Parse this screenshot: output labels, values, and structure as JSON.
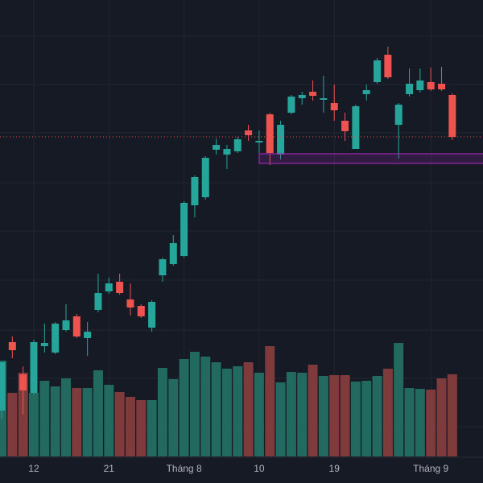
{
  "chart_data": {
    "type": "candlestick",
    "categories": [
      null,
      null,
      null,
      "12",
      null,
      null,
      null,
      null,
      null,
      null,
      "21",
      null,
      null,
      null,
      null,
      null,
      null,
      "Tháng 8",
      null,
      null,
      null,
      null,
      null,
      null,
      "10",
      null,
      null,
      null,
      null,
      null,
      null,
      "19",
      null,
      null,
      null,
      null,
      null,
      null,
      null,
      null,
      "Tháng 9",
      null,
      null
    ],
    "open": [
      90,
      175,
      135,
      112,
      170,
      162,
      190,
      207,
      180,
      215,
      238,
      250,
      228,
      220,
      193,
      258,
      272,
      282,
      345,
      355,
      414,
      408,
      412,
      438,
      423,
      458,
      408,
      460,
      478,
      486,
      476,
      472,
      450,
      415,
      483,
      498,
      532,
      445,
      483,
      488,
      498,
      496,
      482
    ],
    "high": [
      150,
      182,
      145,
      178,
      198,
      200,
      222,
      210,
      200,
      260,
      255,
      260,
      248,
      222,
      227,
      280,
      308,
      350,
      382,
      406,
      428,
      420,
      430,
      445,
      438,
      460,
      450,
      482,
      486,
      500,
      506,
      495,
      460,
      470,
      495,
      528,
      542,
      472,
      515,
      515,
      516,
      517,
      484
    ],
    "low": [
      80,
      155,
      85,
      110,
      162,
      160,
      188,
      180,
      158,
      212,
      235,
      234,
      208,
      205,
      188,
      250,
      270,
      280,
      330,
      352,
      408,
      390,
      410,
      425,
      410,
      395,
      402,
      458,
      470,
      475,
      460,
      450,
      425,
      415,
      475,
      496,
      502,
      403,
      480,
      485,
      487,
      487,
      426
    ],
    "close": [
      150,
      165,
      115,
      175,
      174,
      198,
      202,
      182,
      188,
      236,
      248,
      236,
      218,
      207,
      225,
      278,
      298,
      348,
      380,
      404,
      420,
      415,
      427,
      432,
      425,
      410,
      445,
      480,
      482,
      481,
      478,
      463,
      437,
      468,
      488,
      525,
      504,
      470,
      496,
      500,
      489,
      489,
      430
    ],
    "volume": [
      119,
      79,
      104,
      79,
      94,
      87,
      97,
      85,
      85,
      107,
      89,
      80,
      74,
      70,
      70,
      110,
      96,
      121,
      130,
      124,
      117,
      109,
      112,
      117,
      104,
      137,
      92,
      105,
      104,
      114,
      100,
      101,
      101,
      93,
      94,
      100,
      109,
      141,
      85,
      84,
      83,
      97,
      102
    ],
    "ylim": [
      0,
      600
    ],
    "volume_ylim": [
      0,
      600
    ],
    "up_color": "#26a69a",
    "down_color": "#ef5350",
    "volume_up_color": "#22695f",
    "volume_down_color": "#7f3b3b",
    "price_line": 430,
    "zone": [
      397,
      409
    ],
    "zone_color": "#9c27b0"
  }
}
